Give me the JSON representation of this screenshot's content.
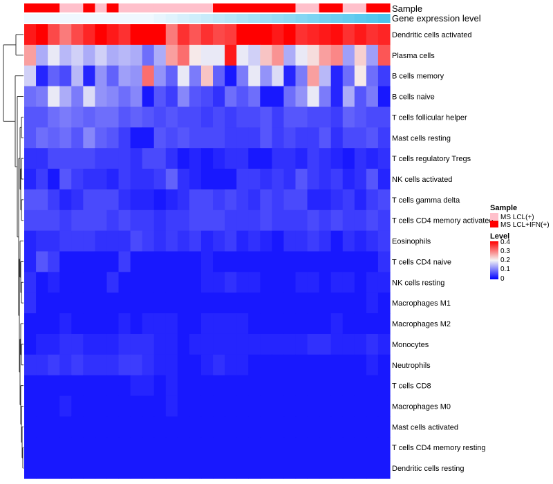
{
  "chart_data": {
    "type": "heatmap",
    "annotations": {
      "sample_title": "Sample",
      "gene_title": "Gene expression level"
    },
    "rows": [
      "Dendritic cells activated",
      "Plasma cells",
      "B cells memory",
      "B cells naive",
      "T cells follicular helper",
      "Mast cells resting",
      "T cells regulatory  Tregs",
      "NK cells activated",
      "T cells gamma delta",
      "T cells CD4 memory activated",
      "Eosinophils",
      "T cells CD4 naive",
      "NK cells resting",
      "Macrophages M1",
      "Macrophages M2",
      "Monocytes",
      "Neutrophils",
      "T cells CD8",
      "Macrophages M0",
      "Mast cells activated",
      "T cells CD4 memory resting",
      "Dendritic cells resting"
    ],
    "sample_groups": [
      1,
      1,
      1,
      0,
      0,
      1,
      0,
      1,
      0,
      0,
      0,
      0,
      0,
      0,
      0,
      0,
      1,
      1,
      1,
      1,
      1,
      1,
      1,
      0,
      0,
      1,
      1,
      0,
      0,
      1,
      1
    ],
    "gene_expression_level": [
      0,
      0,
      0,
      0,
      0,
      0,
      0,
      0,
      0,
      0,
      0,
      0.05,
      0.1,
      0.15,
      0.2,
      0.25,
      0.3,
      0.35,
      0.4,
      0.45,
      0.5,
      0.55,
      0.6,
      0.65,
      0.7,
      0.75,
      0.8,
      0.85,
      0.9,
      0.95,
      1
    ],
    "values": [
      [
        0.38,
        0.46,
        0.34,
        0.3,
        0.34,
        0.37,
        0.42,
        0.38,
        0.36,
        0.42,
        0.43,
        0.45,
        0.3,
        0.36,
        0.33,
        0.36,
        0.34,
        0.35,
        0.42,
        0.44,
        0.44,
        0.38,
        0.43,
        0.36,
        0.37,
        0.38,
        0.39,
        0.36,
        0.38,
        0.36,
        0.37
      ],
      [
        0.27,
        0.14,
        0.19,
        0.15,
        0.17,
        0.14,
        0.17,
        0.14,
        0.15,
        0.14,
        0.09,
        0.14,
        0.27,
        0.31,
        0.21,
        0.19,
        0.19,
        0.38,
        0.19,
        0.17,
        0.24,
        0.28,
        0.14,
        0.19,
        0.22,
        0.27,
        0.29,
        0.13,
        0.23,
        0.13,
        0.33
      ],
      [
        0.17,
        0.03,
        0.08,
        0.06,
        0.15,
        0.03,
        0.12,
        0.08,
        0.13,
        0.12,
        0.31,
        0.12,
        0.08,
        0.19,
        0.1,
        0.24,
        0.08,
        0.02,
        0.1,
        0.19,
        0.12,
        0.18,
        0.03,
        0.1,
        0.27,
        0.15,
        0.03,
        0.09,
        0.21,
        0.09,
        0.05
      ],
      [
        0.09,
        0.1,
        0.19,
        0.14,
        0.1,
        0.18,
        0.12,
        0.11,
        0.09,
        0.11,
        0.02,
        0.07,
        0.05,
        0.11,
        0.07,
        0.06,
        0.04,
        0.09,
        0.07,
        0.09,
        0.02,
        0.02,
        0.09,
        0.12,
        0.19,
        0.1,
        0.03,
        0.14,
        0.07,
        0.1,
        0.02
      ],
      [
        0.07,
        0.07,
        0.09,
        0.1,
        0.09,
        0.08,
        0.09,
        0.09,
        0.07,
        0.08,
        0.07,
        0.06,
        0.07,
        0.06,
        0.06,
        0.05,
        0.06,
        0.05,
        0.06,
        0.06,
        0.07,
        0.05,
        0.07,
        0.07,
        0.06,
        0.06,
        0.05,
        0.08,
        0.07,
        0.06,
        0.06
      ],
      [
        0.07,
        0.09,
        0.08,
        0.09,
        0.07,
        0.11,
        0.08,
        0.07,
        0.05,
        0.02,
        0.02,
        0.07,
        0.06,
        0.07,
        0.06,
        0.06,
        0.06,
        0.05,
        0.05,
        0.05,
        0.07,
        0.05,
        0.06,
        0.05,
        0.05,
        0.07,
        0.04,
        0.06,
        0.06,
        0.07,
        0.05
      ],
      [
        0.04,
        0.04,
        0.06,
        0.06,
        0.06,
        0.06,
        0.05,
        0.05,
        0.05,
        0.04,
        0.06,
        0.06,
        0.04,
        0.02,
        0.03,
        0.02,
        0.03,
        0.04,
        0.04,
        0.02,
        0.02,
        0.04,
        0.04,
        0.03,
        0.05,
        0.04,
        0.03,
        0.02,
        0.04,
        0.03,
        0.04
      ],
      [
        0.03,
        0.05,
        0.02,
        0.07,
        0.05,
        0.04,
        0.04,
        0.03,
        0.05,
        0.04,
        0.04,
        0.05,
        0.08,
        0.04,
        0.03,
        0.02,
        0.02,
        0.02,
        0.05,
        0.05,
        0.04,
        0.05,
        0.04,
        0.07,
        0.05,
        0.04,
        0.05,
        0.03,
        0.04,
        0.07,
        0.03
      ],
      [
        0.07,
        0.07,
        0.05,
        0.03,
        0.04,
        0.06,
        0.06,
        0.06,
        0.04,
        0.03,
        0.03,
        0.02,
        0.03,
        0.04,
        0.06,
        0.06,
        0.05,
        0.06,
        0.05,
        0.04,
        0.06,
        0.05,
        0.06,
        0.06,
        0.03,
        0.03,
        0.04,
        0.05,
        0.03,
        0.05,
        0.06
      ],
      [
        0.06,
        0.06,
        0.06,
        0.05,
        0.06,
        0.06,
        0.06,
        0.05,
        0.06,
        0.05,
        0.05,
        0.04,
        0.05,
        0.05,
        0.06,
        0.06,
        0.06,
        0.05,
        0.05,
        0.05,
        0.06,
        0.05,
        0.05,
        0.05,
        0.06,
        0.05,
        0.06,
        0.05,
        0.05,
        0.06,
        0.05
      ],
      [
        0.03,
        0.04,
        0.04,
        0.05,
        0.05,
        0.05,
        0.04,
        0.04,
        0.04,
        0.06,
        0.05,
        0.04,
        0.05,
        0.04,
        0.05,
        0.03,
        0.04,
        0.05,
        0.03,
        0.04,
        0.03,
        0.02,
        0.04,
        0.04,
        0.05,
        0.04,
        0.02,
        0.04,
        0.03,
        0.04,
        0.05
      ],
      [
        0.03,
        0.07,
        0.05,
        0.02,
        0.02,
        0.02,
        0.02,
        0.02,
        0.05,
        0.02,
        0.02,
        0.02,
        0.02,
        0.02,
        0.02,
        0.03,
        0.02,
        0.02,
        0.02,
        0.02,
        0.02,
        0.02,
        0.02,
        0.02,
        0.02,
        0.02,
        0.02,
        0.02,
        0.02,
        0.02,
        0.04
      ],
      [
        0.04,
        0.02,
        0.03,
        0.02,
        0.02,
        0.02,
        0.02,
        0.04,
        0.02,
        0.02,
        0.02,
        0.02,
        0.02,
        0.02,
        0.02,
        0.03,
        0.03,
        0.04,
        0.03,
        0.03,
        0.02,
        0.02,
        0.02,
        0.03,
        0.03,
        0.02,
        0.03,
        0.03,
        0.02,
        0.03,
        0.03
      ],
      [
        0.04,
        0.02,
        0.02,
        0.02,
        0.02,
        0.02,
        0.02,
        0.02,
        0.02,
        0.02,
        0.02,
        0.02,
        0.02,
        0.02,
        0.02,
        0.02,
        0.02,
        0.02,
        0.02,
        0.02,
        0.02,
        0.02,
        0.02,
        0.02,
        0.02,
        0.02,
        0.02,
        0.02,
        0.02,
        0.03,
        0.02
      ],
      [
        0.02,
        0.02,
        0.02,
        0.03,
        0.02,
        0.02,
        0.02,
        0.02,
        0.03,
        0.02,
        0.03,
        0.03,
        0.03,
        0.02,
        0.02,
        0.03,
        0.03,
        0.03,
        0.03,
        0.02,
        0.02,
        0.02,
        0.02,
        0.02,
        0.02,
        0.02,
        0.03,
        0.02,
        0.02,
        0.02,
        0.02
      ],
      [
        0.02,
        0.03,
        0.03,
        0.04,
        0.04,
        0.03,
        0.03,
        0.03,
        0.04,
        0.04,
        0.04,
        0.03,
        0.03,
        0.02,
        0.03,
        0.03,
        0.03,
        0.03,
        0.03,
        0.03,
        0.03,
        0.03,
        0.03,
        0.03,
        0.04,
        0.04,
        0.03,
        0.03,
        0.03,
        0.04,
        0.03
      ],
      [
        0.04,
        0.04,
        0.05,
        0.04,
        0.05,
        0.04,
        0.04,
        0.04,
        0.05,
        0.05,
        0.04,
        0.03,
        0.03,
        0.02,
        0.02,
        0.03,
        0.04,
        0.03,
        0.03,
        0.02,
        0.02,
        0.02,
        0.02,
        0.02,
        0.02,
        0.02,
        0.02,
        0.02,
        0.02,
        0.03,
        0.02
      ],
      [
        0.02,
        0.02,
        0.02,
        0.02,
        0.02,
        0.02,
        0.02,
        0.02,
        0.02,
        0.03,
        0.03,
        0.02,
        0.03,
        0.02,
        0.02,
        0.02,
        0.02,
        0.02,
        0.02,
        0.02,
        0.02,
        0.02,
        0.02,
        0.02,
        0.02,
        0.02,
        0.02,
        0.02,
        0.02,
        0.02,
        0.02
      ],
      [
        0.02,
        0.02,
        0.02,
        0.03,
        0.02,
        0.02,
        0.02,
        0.02,
        0.02,
        0.02,
        0.02,
        0.02,
        0.03,
        0.02,
        0.02,
        0.02,
        0.02,
        0.02,
        0.02,
        0.02,
        0.02,
        0.02,
        0.02,
        0.02,
        0.02,
        0.02,
        0.02,
        0.02,
        0.02,
        0.02,
        0.02
      ],
      [
        0.02,
        0.02,
        0.02,
        0.02,
        0.02,
        0.02,
        0.02,
        0.02,
        0.02,
        0.02,
        0.02,
        0.02,
        0.02,
        0.02,
        0.02,
        0.02,
        0.02,
        0.02,
        0.02,
        0.02,
        0.02,
        0.02,
        0.02,
        0.02,
        0.02,
        0.02,
        0.02,
        0.02,
        0.02,
        0.02,
        0.02
      ],
      [
        0.02,
        0.02,
        0.02,
        0.02,
        0.02,
        0.02,
        0.02,
        0.02,
        0.02,
        0.02,
        0.02,
        0.02,
        0.02,
        0.02,
        0.02,
        0.02,
        0.02,
        0.02,
        0.02,
        0.02,
        0.02,
        0.02,
        0.02,
        0.02,
        0.02,
        0.02,
        0.02,
        0.02,
        0.02,
        0.02,
        0.02
      ],
      [
        0.02,
        0.02,
        0.02,
        0.02,
        0.02,
        0.02,
        0.02,
        0.02,
        0.02,
        0.02,
        0.02,
        0.02,
        0.02,
        0.02,
        0.02,
        0.02,
        0.02,
        0.02,
        0.02,
        0.02,
        0.02,
        0.02,
        0.02,
        0.02,
        0.02,
        0.02,
        0.02,
        0.02,
        0.02,
        0.02,
        0.02
      ]
    ],
    "color_scale": {
      "min": 0,
      "max": 0.4,
      "low": "#0000ff",
      "mid": "#f5f5f5",
      "high": "#ff0000",
      "midpoint": 0.2
    },
    "legend": {
      "sample_title": "Sample",
      "sample_items": [
        {
          "label": "MS LCL(+)",
          "color": "#ffc0cb"
        },
        {
          "label": "MS LCL+IFN(+)",
          "color": "#ff0000"
        }
      ],
      "level_title": "Level",
      "level_ticks": [
        "0.4",
        "0.3",
        "0.2",
        "0.1",
        "0"
      ]
    },
    "dendrogram": "row clustering tree on left"
  }
}
